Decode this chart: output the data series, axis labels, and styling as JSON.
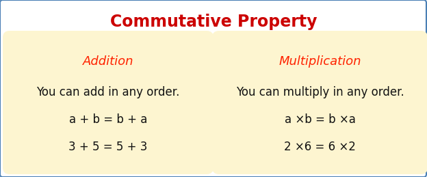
{
  "title": "Commutative Property",
  "title_color": "#cc0000",
  "title_fontsize": 17,
  "background_color": "#ffffff",
  "border_color": "#4a7fb5",
  "box_bg_color": "#fdf5d0",
  "left_box": {
    "heading": "Addition",
    "heading_color": "#ff2200",
    "heading_fontsize": 13,
    "line1": "You can add in any order.",
    "line2": "a + b = b + a",
    "line3": "3 + 5 = 5 + 3",
    "text_color": "#111111",
    "text_fontsize": 12
  },
  "right_box": {
    "heading": "Multiplication",
    "heading_color": "#ff2200",
    "heading_fontsize": 13,
    "line1": "You can multiply in any order.",
    "line2": "a ×b = b ×a",
    "line3": "2 ×6 = 6 ×2",
    "text_color": "#111111",
    "text_fontsize": 12
  }
}
